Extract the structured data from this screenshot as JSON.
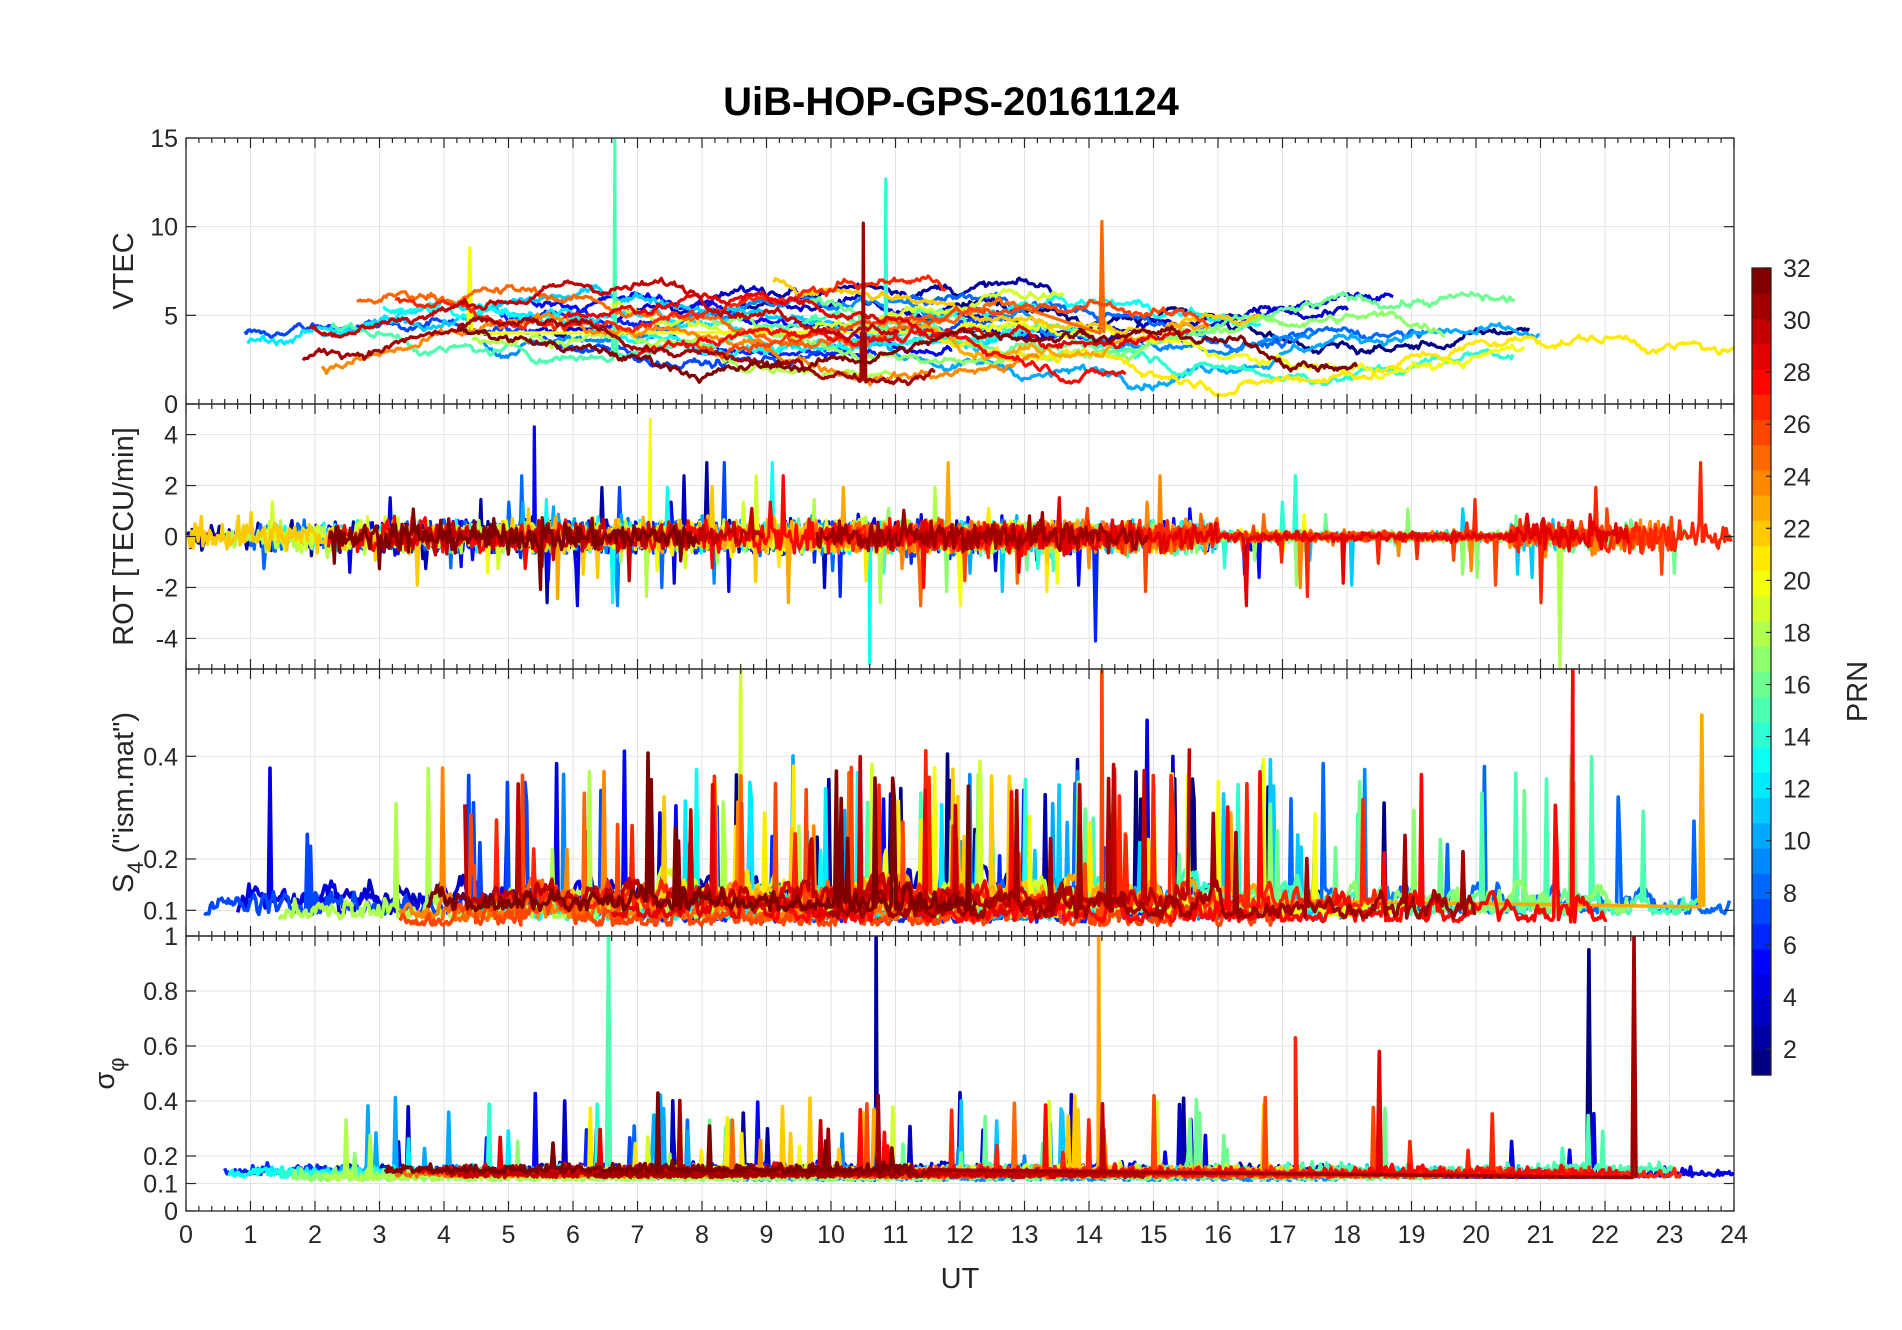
{
  "title": "UiB-HOP-GPS-20161124",
  "colormap": "jet",
  "colors": {
    "frame": "#262626",
    "grid": "#e3e3e3",
    "background": "#ffffff"
  },
  "chart_data": [
    {
      "id": "vtec",
      "type": "line",
      "ylabel": "VTEC",
      "xlim": [
        0,
        24
      ],
      "ylim": [
        0,
        15
      ],
      "yticks": [
        0,
        5,
        10,
        15
      ],
      "series_count": 32,
      "peaks": [
        {
          "prn": 15,
          "x": 6.65,
          "y": 15.0
        },
        {
          "prn": 14,
          "x": 10.85,
          "y": 12.7
        },
        {
          "prn": 31,
          "x": 10.5,
          "y": 10.2
        },
        {
          "prn": 25,
          "x": 14.2,
          "y": 10.3
        },
        {
          "prn": 20,
          "x": 4.4,
          "y": 8.8
        }
      ]
    },
    {
      "id": "rot",
      "type": "line",
      "ylabel": "ROT [TECU/min]",
      "xlim": [
        0,
        24
      ],
      "ylim": [
        -5.2,
        5.2
      ],
      "yticks": [
        -4,
        -2,
        0,
        2,
        4
      ],
      "series_count": 32,
      "peaks": [
        {
          "prn": 20,
          "x": 7.2,
          "y": 4.6
        },
        {
          "prn": 5,
          "x": 5.4,
          "y": 4.3
        },
        {
          "prn": 13,
          "x": 10.6,
          "y": -5.0
        },
        {
          "prn": 18,
          "x": 21.3,
          "y": -5.2
        },
        {
          "prn": 6,
          "x": 14.1,
          "y": -4.1
        }
      ]
    },
    {
      "id": "s4",
      "type": "line",
      "ylabel": "S",
      "ylabel_sub": "4",
      "ylabel_rest": " (\"ism.mat\")",
      "xlim": [
        0,
        24
      ],
      "ylim": [
        0.05,
        0.57
      ],
      "yticks": [
        0.1,
        0.2,
        0.4
      ],
      "series_count": 32,
      "peaks": [
        {
          "prn": 19,
          "x": 8.6,
          "y": 0.57
        },
        {
          "prn": 26,
          "x": 14.2,
          "y": 0.57
        },
        {
          "prn": 28,
          "x": 21.5,
          "y": 0.57
        },
        {
          "prn": 23,
          "x": 23.5,
          "y": 0.48
        },
        {
          "prn": 4,
          "x": 14.9,
          "y": 0.47
        }
      ]
    },
    {
      "id": "sigma",
      "type": "line",
      "ylabel": "σ",
      "ylabel_sub": "φ",
      "xlabel": "UT",
      "xlim": [
        0,
        24
      ],
      "ylim": [
        0,
        1
      ],
      "yticks": [
        0,
        0.1,
        0.2,
        0.4,
        0.6,
        0.8,
        1
      ],
      "xticks": [
        0,
        1,
        2,
        3,
        4,
        5,
        6,
        7,
        8,
        9,
        10,
        11,
        12,
        13,
        14,
        15,
        16,
        17,
        18,
        19,
        20,
        21,
        22,
        23,
        24
      ],
      "series_count": 32,
      "peaks": [
        {
          "prn": 2,
          "x": 10.7,
          "y": 1.0
        },
        {
          "prn": 15,
          "x": 6.55,
          "y": 1.0
        },
        {
          "prn": 23,
          "x": 14.15,
          "y": 1.0
        },
        {
          "prn": 31,
          "x": 22.45,
          "y": 1.0
        },
        {
          "prn": 1,
          "x": 21.75,
          "y": 0.95
        },
        {
          "prn": 27,
          "x": 17.2,
          "y": 0.63
        },
        {
          "prn": 29,
          "x": 18.5,
          "y": 0.58
        }
      ]
    }
  ],
  "colorbar": {
    "label": "PRN",
    "range": [
      1,
      32
    ],
    "ticks": [
      2,
      4,
      6,
      8,
      10,
      12,
      14,
      16,
      18,
      20,
      22,
      24,
      26,
      28,
      30,
      32
    ]
  }
}
